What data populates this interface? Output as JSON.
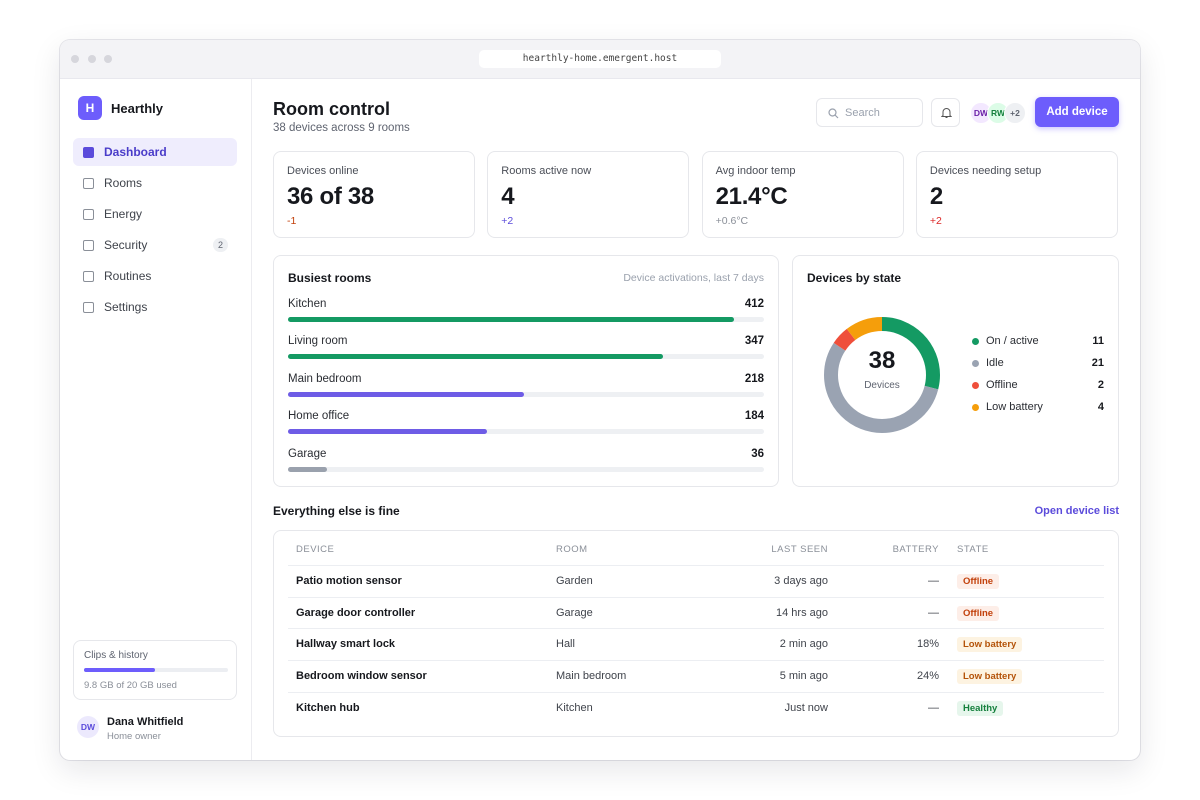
{
  "browser": {
    "url": "hearthly-home.emergent.host"
  },
  "sidebar": {
    "brand_initial": "H",
    "brand": "Hearthly",
    "nav": [
      {
        "label": "Dashboard",
        "active": true
      },
      {
        "label": "Rooms"
      },
      {
        "label": "Energy"
      },
      {
        "label": "Security",
        "badge": "2"
      },
      {
        "label": "Routines"
      },
      {
        "label": "Settings"
      }
    ],
    "storage": {
      "title": "Clips & history",
      "label": "9.8 GB of 20 GB used",
      "used": 9.8,
      "capacity": 20
    },
    "user": {
      "initials": "DW",
      "name": "Dana Whitfield",
      "role": "Home owner"
    }
  },
  "header": {
    "title": "Room control",
    "subtitle": "38 devices across 9 rooms",
    "search_placeholder": "Search",
    "avatars": [
      "DW",
      "RW",
      "+2"
    ],
    "button": "Add device"
  },
  "kpis": [
    {
      "label": "Devices online",
      "value": "36 of 38",
      "delta": "-1",
      "delta_color": "#c2410c"
    },
    {
      "label": "Rooms active now",
      "value": "4",
      "delta": "+2",
      "delta_color": "#5b4bdb"
    },
    {
      "label": "Avg indoor temp",
      "value": "21.4°C",
      "delta": "+0.6°C",
      "delta_color": "#8a8f98"
    },
    {
      "label": "Devices needing setup",
      "value": "2",
      "delta": "+2",
      "delta_color": "#dc2626"
    }
  ],
  "busiest_rooms": {
    "type": "bar",
    "title": "Busiest rooms",
    "subtitle": "Device activations, last 7 days",
    "categories": [
      "Kitchen",
      "Living room",
      "Main bedroom",
      "Home office",
      "Garage"
    ],
    "values": [
      412,
      347,
      218,
      184,
      36
    ],
    "colors": [
      "#149a63",
      "#149a63",
      "#6e5ce6",
      "#6e5ce6",
      "#9aa1ad"
    ],
    "xlim": [
      0,
      440
    ]
  },
  "devices_by_state": {
    "type": "donut",
    "title": "Devices by state",
    "total": "38",
    "total_label": "Devices",
    "categories": [
      "On / active",
      "Idle",
      "Offline",
      "Low battery"
    ],
    "values": [
      11,
      21,
      2,
      4
    ],
    "colors": [
      "#149a63",
      "#9aa3b2",
      "#ef4f3b",
      "#f59e0b"
    ]
  },
  "table": {
    "title": "Everything else is fine",
    "link": "Open device list",
    "columns": [
      "DEVICE",
      "ROOM",
      "LAST SEEN",
      "BATTERY",
      "STATE"
    ],
    "rows": [
      {
        "device": "Patio motion sensor",
        "room": "Garden",
        "last_seen": "3 days ago",
        "battery": "—",
        "state": "Offline",
        "state_color": "#c2410c",
        "state_bg": "#fdeee8"
      },
      {
        "device": "Garage door controller",
        "room": "Garage",
        "last_seen": "14 hrs ago",
        "battery": "—",
        "state": "Offline",
        "state_color": "#c2410c",
        "state_bg": "#fdeee8"
      },
      {
        "device": "Hallway smart lock",
        "room": "Hall",
        "last_seen": "2 min ago",
        "battery": "18%",
        "state": "Low battery",
        "state_color": "#b45309",
        "state_bg": "#fdf3e1"
      },
      {
        "device": "Bedroom window sensor",
        "room": "Main bedroom",
        "last_seen": "5 min ago",
        "battery": "24%",
        "state": "Low battery",
        "state_color": "#b45309",
        "state_bg": "#fdf3e1"
      },
      {
        "device": "Kitchen hub",
        "room": "Kitchen",
        "last_seen": "Just now",
        "battery": "—",
        "state": "Healthy",
        "state_color": "#15803d",
        "state_bg": "#e6f6ec"
      }
    ]
  }
}
